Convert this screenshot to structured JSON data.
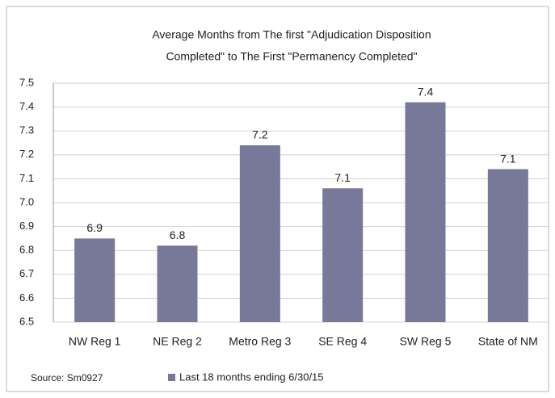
{
  "chart_data": {
    "type": "bar",
    "title": [
      "Average Months from The first \"Adjudication Disposition",
      "Completed\" to The First \"Permanency Completed\""
    ],
    "categories": [
      "NW Reg 1",
      "NE Reg 2",
      "Metro Reg 3",
      "SE Reg 4",
      "SW Reg 5",
      "State of NM"
    ],
    "series": [
      {
        "name": "Last 18 months ending 6/30/15",
        "color": "#77789a",
        "values": [
          6.85,
          6.82,
          7.24,
          7.06,
          7.42,
          7.14
        ],
        "value_labels": [
          "6.9",
          "6.8",
          "7.2",
          "7.1",
          "7.4",
          "7.1"
        ]
      }
    ],
    "ylim": [
      6.5,
      7.5
    ],
    "yticks": [
      6.5,
      6.6,
      6.7,
      6.8,
      6.9,
      {
        "value": 7,
        "label": "7.0"
      },
      7.1,
      7.2,
      7.3,
      7.4,
      7.5
    ],
    "grid": true,
    "legend": "bottom",
    "source": "Source: Sm0927"
  }
}
